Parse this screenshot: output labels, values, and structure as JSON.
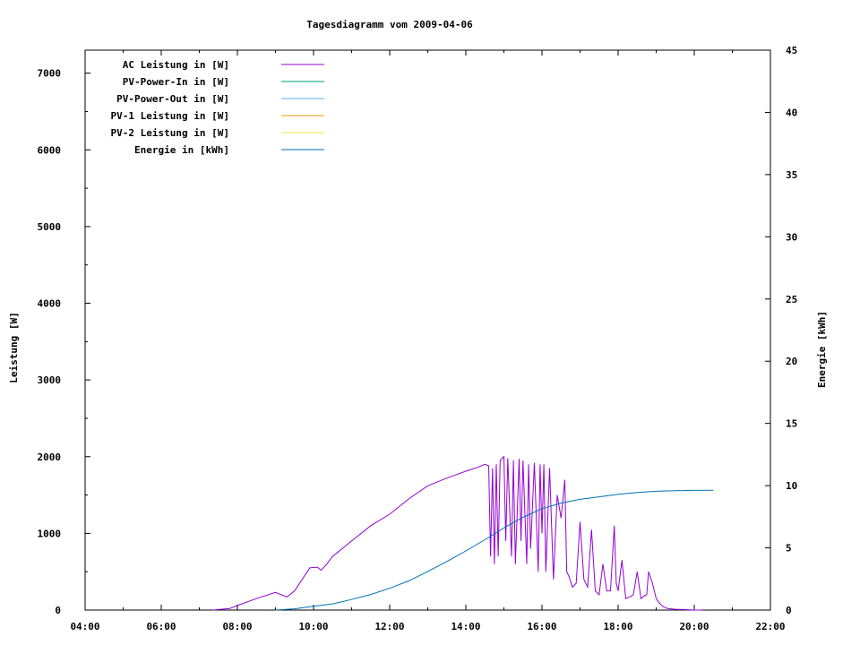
{
  "chart_data": {
    "type": "line",
    "title": "Tagesdiagramm vom 2009-04-06",
    "ylabel": "Leistung [W]",
    "y2label": "Energie [kWh]",
    "xlim": [
      4,
      22
    ],
    "ylim": [
      0,
      7300
    ],
    "y2lim": [
      0,
      45
    ],
    "x_ticks": [
      {
        "value": 4,
        "label": "04:00"
      },
      {
        "value": 6,
        "label": "06:00"
      },
      {
        "value": 8,
        "label": "08:00"
      },
      {
        "value": 10,
        "label": "10:00"
      },
      {
        "value": 12,
        "label": "12:00"
      },
      {
        "value": 14,
        "label": "14:00"
      },
      {
        "value": 16,
        "label": "16:00"
      },
      {
        "value": 18,
        "label": "18:00"
      },
      {
        "value": 20,
        "label": "20:00"
      },
      {
        "value": 22,
        "label": "22:00"
      }
    ],
    "y_ticks": [
      0,
      1000,
      2000,
      3000,
      4000,
      5000,
      6000,
      7000
    ],
    "y2_ticks": [
      0,
      5,
      10,
      15,
      20,
      25,
      30,
      35,
      40,
      45
    ],
    "legend_position": "top-left",
    "series": [
      {
        "name": "AC Leistung in [W]",
        "axis": "y",
        "color": "#9400d3",
        "x": [
          7.35,
          7.8,
          8.0,
          8.5,
          9.0,
          9.3,
          9.5,
          9.7,
          9.9,
          10.1,
          10.2,
          10.35,
          10.5,
          11.0,
          11.5,
          12.0,
          12.5,
          13.0,
          13.5,
          14.0,
          14.3,
          14.5,
          14.6,
          14.65,
          14.7,
          14.75,
          14.8,
          14.85,
          14.9,
          15.0,
          15.05,
          15.1,
          15.2,
          15.25,
          15.3,
          15.4,
          15.45,
          15.5,
          15.6,
          15.65,
          15.7,
          15.8,
          15.9,
          15.95,
          16.0,
          16.05,
          16.1,
          16.2,
          16.3,
          16.4,
          16.5,
          16.6,
          16.65,
          16.7,
          16.8,
          16.9,
          17.0,
          17.1,
          17.2,
          17.3,
          17.4,
          17.5,
          17.6,
          17.7,
          17.8,
          17.9,
          17.95,
          18.0,
          18.1,
          18.2,
          18.3,
          18.4,
          18.5,
          18.6,
          18.7,
          18.75,
          18.8,
          18.9,
          19.0,
          19.1,
          19.2,
          19.3,
          19.5,
          19.8,
          20.0,
          20.2
        ],
        "y": [
          0,
          20,
          60,
          150,
          230,
          170,
          250,
          400,
          550,
          560,
          520,
          600,
          700,
          900,
          1100,
          1250,
          1450,
          1620,
          1720,
          1810,
          1860,
          1900,
          1880,
          700,
          1850,
          600,
          1900,
          700,
          1950,
          2000,
          900,
          1980,
          700,
          1950,
          600,
          1970,
          900,
          1950,
          600,
          1900,
          800,
          1920,
          500,
          1900,
          1000,
          1900,
          500,
          1850,
          400,
          1500,
          1200,
          1700,
          500,
          450,
          300,
          350,
          1150,
          400,
          300,
          1050,
          250,
          200,
          600,
          250,
          250,
          1100,
          350,
          250,
          650,
          150,
          170,
          200,
          500,
          150,
          190,
          200,
          500,
          350,
          150,
          80,
          40,
          20,
          10,
          5,
          0,
          0
        ]
      },
      {
        "name": "PV-Power-In in [W]",
        "axis": "y",
        "color": "#009e73",
        "x": [],
        "y": []
      },
      {
        "name": "PV-Power-Out in [W]",
        "axis": "y",
        "color": "#56b4e9",
        "x": [],
        "y": []
      },
      {
        "name": "PV-1 Leistung in [W]",
        "axis": "y",
        "color": "#e69f00",
        "x": [],
        "y": []
      },
      {
        "name": "PV-2 Leistung in [W]",
        "axis": "y",
        "color": "#f0e442",
        "x": [],
        "y": []
      },
      {
        "name": "Energie in [kWh]",
        "axis": "y2",
        "color": "#0072b2",
        "x": [
          9.0,
          9.5,
          10.0,
          10.5,
          11.0,
          11.5,
          12.0,
          12.5,
          13.0,
          13.5,
          14.0,
          14.5,
          15.0,
          15.5,
          16.0,
          16.5,
          17.0,
          17.5,
          18.0,
          18.5,
          19.0,
          19.5,
          20.0,
          20.5
        ],
        "y": [
          0.0,
          0.1,
          0.3,
          0.5,
          0.85,
          1.25,
          1.75,
          2.35,
          3.1,
          3.9,
          4.75,
          5.65,
          6.6,
          7.45,
          8.15,
          8.6,
          8.9,
          9.1,
          9.3,
          9.45,
          9.55,
          9.6,
          9.62,
          9.63
        ]
      }
    ]
  }
}
